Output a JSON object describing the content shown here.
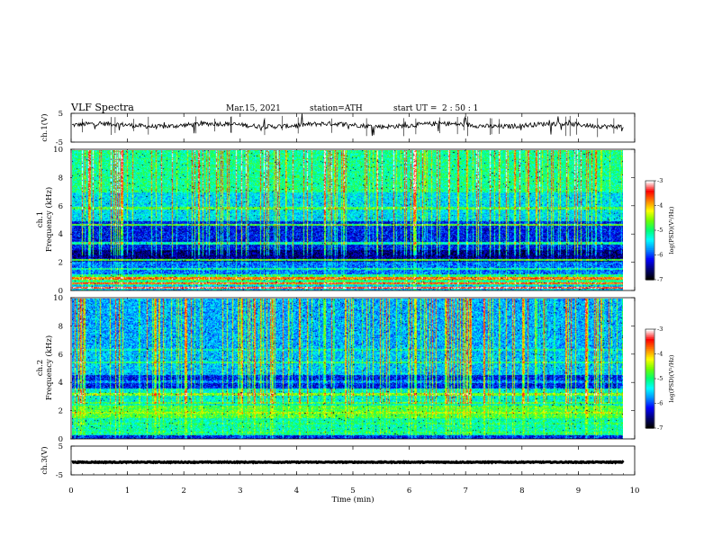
{
  "header": {
    "title": "VLF  Spectra",
    "date": "Mar.15, 2021",
    "station": "station=ATH",
    "start_prefix": "start  UT  =",
    "start_time": "2  : 50 : 1"
  },
  "chart_data": [
    {
      "type": "line",
      "panel": "waveform-ch1",
      "ylabel": "ch.1(V)",
      "ylim": [
        -5,
        5
      ],
      "yticks": [
        "5",
        "-5"
      ],
      "description_value": "noisy baseline near 0 V with spikes",
      "color": "#000000"
    },
    {
      "type": "heatmap",
      "panel": "spectrogram-ch1",
      "ylabel_top": "ch.1",
      "ylabel": "Frequency  (kHz)",
      "ylim": [
        0,
        10
      ],
      "yticks": [
        "0",
        "2",
        "4",
        "6",
        "8",
        "10"
      ],
      "colorbar": {
        "label": "log(PSD)(V²/Hz)",
        "range": [
          -7,
          -3
        ],
        "ticks": [
          "-3",
          "-4",
          "-5",
          "-6",
          "-7"
        ]
      },
      "colormap": [
        "#000000",
        "#00007a",
        "#0000ff",
        "#0090ff",
        "#00ffff",
        "#00ff70",
        "#70ff00",
        "#ffff00",
        "#ff8000",
        "#ff0000",
        "#ffffff"
      ]
    },
    {
      "type": "heatmap",
      "panel": "spectrogram-ch2",
      "ylabel_top": "ch.2",
      "ylabel": "Frequency  (kHz)",
      "ylim": [
        0,
        10
      ],
      "yticks": [
        "0",
        "2",
        "4",
        "6",
        "8",
        "10"
      ],
      "colorbar": {
        "label": "log(PSD)(V²/Hz)",
        "range": [
          -7,
          -3
        ],
        "ticks": [
          "-3",
          "-4",
          "-5",
          "-6",
          "-7"
        ]
      }
    },
    {
      "type": "line",
      "panel": "waveform-ch3",
      "ylabel": "ch.3(V)",
      "ylim": [
        -5,
        5
      ],
      "yticks": [
        "5",
        "-5"
      ],
      "color": "#000000"
    }
  ],
  "x_axis": {
    "label": "Time  (min)",
    "range": [
      0,
      10
    ],
    "ticks": [
      "0",
      "1",
      "2",
      "3",
      "4",
      "5",
      "6",
      "7",
      "8",
      "9",
      "10"
    ]
  }
}
